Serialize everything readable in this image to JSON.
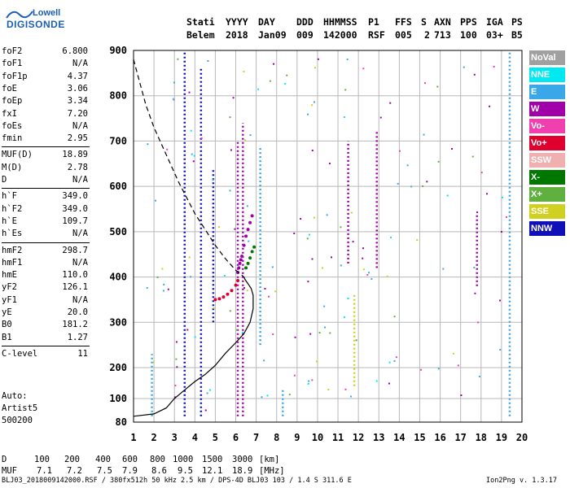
{
  "logo": {
    "line1": "Lowell",
    "line2": "DIGISONDE"
  },
  "header": {
    "labels": [
      "Stati",
      "YYYY",
      "DAY",
      "DDD",
      "HHMMSS",
      "P1",
      "FFS",
      "S",
      "AXN",
      "PPS",
      "IGA",
      "PS"
    ],
    "values": [
      "Belem",
      "2018",
      "Jan09",
      "009",
      "142000",
      "RSF",
      "005",
      "2",
      "713",
      "100",
      "03+",
      "B5"
    ]
  },
  "parameters": [
    {
      "name": "foF2",
      "value": "6.800"
    },
    {
      "name": "foF1",
      "value": "N/A"
    },
    {
      "name": "foF1p",
      "value": "4.37"
    },
    {
      "name": "foE",
      "value": "3.06"
    },
    {
      "name": "foEp",
      "value": "3.34"
    },
    {
      "name": "fxI",
      "value": "7.20"
    },
    {
      "name": "foEs",
      "value": "N/A"
    },
    {
      "name": "fmin",
      "value": "2.95"
    },
    {
      "name": "MUF(D)",
      "value": "18.89"
    },
    {
      "name": "M(D)",
      "value": "2.78"
    },
    {
      "name": "D",
      "value": "N/A"
    },
    {
      "name": "h`F",
      "value": "349.0"
    },
    {
      "name": "h`F2",
      "value": "349.0"
    },
    {
      "name": "h`E",
      "value": "109.7"
    },
    {
      "name": "h`Es",
      "value": "N/A"
    },
    {
      "name": "hmF2",
      "value": "298.7"
    },
    {
      "name": "hmF1",
      "value": "N/A"
    },
    {
      "name": "hmE",
      "value": "110.0"
    },
    {
      "name": "yF2",
      "value": "126.1"
    },
    {
      "name": "yF1",
      "value": "N/A"
    },
    {
      "name": "yE",
      "value": "20.0"
    },
    {
      "name": "B0",
      "value": "181.2"
    },
    {
      "name": "B1",
      "value": "1.27"
    },
    {
      "name": "C-level",
      "value": "11"
    }
  ],
  "auto": [
    "Auto:",
    "Artist5",
    "500200"
  ],
  "legend": [
    {
      "label": "NoVal",
      "color": "#a0a0a0"
    },
    {
      "label": "NNE",
      "color": "#00e8f0"
    },
    {
      "label": "E",
      "color": "#3aa8e8"
    },
    {
      "label": "W",
      "color": "#a000a8"
    },
    {
      "label": "Vo-",
      "color": "#f040b0"
    },
    {
      "label": "Vo+",
      "color": "#e00030"
    },
    {
      "label": "SSW",
      "color": "#f0b0b0"
    },
    {
      "label": "X-",
      "color": "#007800"
    },
    {
      "label": "X+",
      "color": "#60b040"
    },
    {
      "label": "SSE",
      "color": "#d0d020"
    },
    {
      "label": "NNW",
      "color": "#1010b8"
    }
  ],
  "footer": {
    "d_label": "D",
    "d_values": [
      "100",
      "200",
      "400",
      "600",
      "800",
      "1000",
      "1500",
      "3000"
    ],
    "d_unit": "[km]",
    "muf_label": "MUF",
    "muf_values": [
      "7.1",
      "7.2",
      "7.5",
      "7.9",
      "8.6",
      "9.5",
      "12.1",
      "18.9"
    ],
    "muf_unit": "[MHz]",
    "source_line": "BLJ03_2018009142000.RSF / 380fx512h 50 kHz 2.5 km / DPS-4D BLJ03 103 / 1.4 S 311.6 E",
    "version": "Ion2Png v. 1.3.17"
  },
  "chart_data": {
    "type": "scatter",
    "x_ticks": [
      1,
      2,
      3,
      4,
      5,
      6,
      7,
      8,
      9,
      10,
      11,
      12,
      13,
      14,
      15,
      16,
      17,
      18,
      19,
      20
    ],
    "y_ticks": [
      80,
      100,
      200,
      300,
      400,
      500,
      600,
      700,
      800,
      900
    ],
    "xlim": [
      1,
      20
    ],
    "ylim": [
      80,
      900
    ],
    "grid": true,
    "profile_solid": {
      "x": [
        1.0,
        2.0,
        2.6,
        3.0,
        3.5,
        4.0,
        4.5,
        5.0,
        5.5,
        6.0,
        6.4,
        6.7,
        6.85,
        6.85,
        6.75,
        6.6,
        6.45,
        6.4
      ],
      "y": [
        85,
        87,
        92,
        100,
        128,
        155,
        178,
        205,
        232,
        255,
        275,
        300,
        330,
        360,
        375,
        385,
        395,
        400
      ]
    },
    "profile_dashed": {
      "x": [
        1.0,
        1.3,
        1.6,
        2.0,
        2.4,
        2.8,
        3.2,
        3.6,
        4.0,
        4.5,
        5.0,
        5.5,
        6.0,
        6.4
      ],
      "y": [
        880,
        830,
        780,
        730,
        690,
        650,
        610,
        575,
        540,
        505,
        470,
        440,
        415,
        400
      ]
    },
    "traces": [
      {
        "name": "W",
        "x": [
          6.1,
          6.15,
          6.2,
          6.25,
          6.3,
          6.4,
          6.5,
          6.6,
          6.7,
          6.8
        ],
        "y": [
          410,
          420,
          430,
          438,
          446,
          470,
          490,
          505,
          520,
          535
        ]
      },
      {
        "name": "Vo+",
        "x": [
          5.0,
          5.2,
          5.4,
          5.6,
          5.8,
          6.0,
          6.1
        ],
        "y": [
          350,
          352,
          356,
          362,
          370,
          382,
          392
        ]
      },
      {
        "name": "X-",
        "x": [
          6.5,
          6.6,
          6.7,
          6.8,
          6.9
        ],
        "y": [
          420,
          430,
          442,
          456,
          466
        ]
      }
    ],
    "columns": [
      {
        "name": "NNW",
        "x": 3.5,
        "y1": 85,
        "y2": 900
      },
      {
        "name": "NNW",
        "x": 4.3,
        "y1": 85,
        "y2": 860
      },
      {
        "name": "NNW",
        "x": 4.9,
        "y1": 300,
        "y2": 640
      },
      {
        "name": "W",
        "x": 6.1,
        "y1": 85,
        "y2": 700
      },
      {
        "name": "W",
        "x": 6.35,
        "y1": 85,
        "y2": 740
      },
      {
        "name": "E",
        "x": 7.2,
        "y1": 250,
        "y2": 690
      },
      {
        "name": "E",
        "x": 1.9,
        "y1": 85,
        "y2": 230
      },
      {
        "name": "E",
        "x": 8.3,
        "y1": 85,
        "y2": 130
      },
      {
        "name": "SSE",
        "x": 11.8,
        "y1": 140,
        "y2": 360
      },
      {
        "name": "W",
        "x": 11.5,
        "y1": 430,
        "y2": 700
      },
      {
        "name": "W",
        "x": 12.9,
        "y1": 420,
        "y2": 720
      },
      {
        "name": "W",
        "x": 17.8,
        "y1": 380,
        "y2": 540
      },
      {
        "name": "E",
        "x": 19.4,
        "y1": 85,
        "y2": 900
      }
    ],
    "series_names": [
      "NoVal",
      "NNE",
      "E",
      "W",
      "Vo-",
      "Vo+",
      "SSW",
      "X-",
      "X+",
      "SSE",
      "NNW"
    ]
  }
}
